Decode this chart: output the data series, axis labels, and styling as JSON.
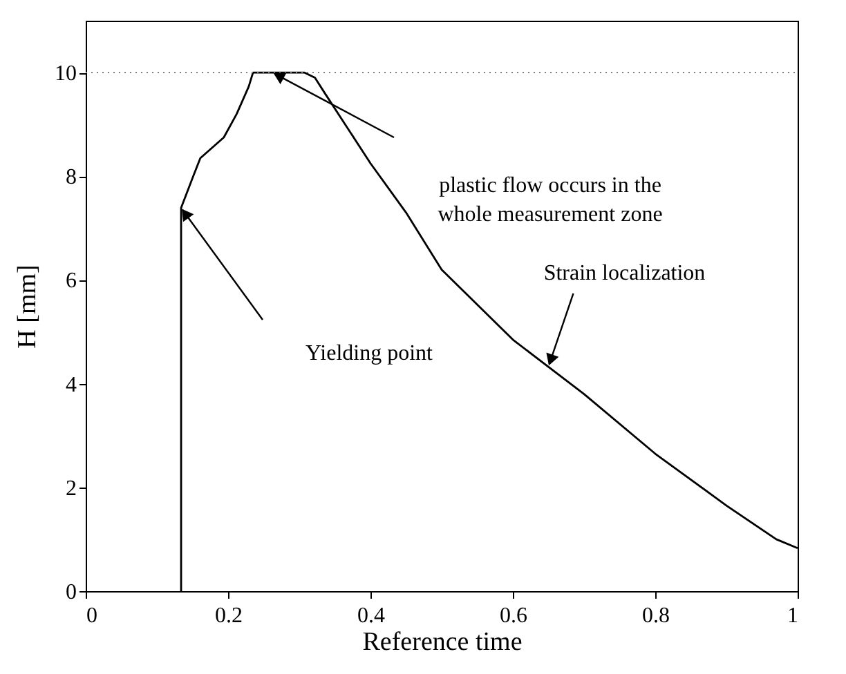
{
  "chart_data": {
    "type": "line",
    "xlabel": "Reference time",
    "ylabel": "H [mm]",
    "x": [
      0.134,
      0.134,
      0.151,
      0.161,
      0.194,
      0.212,
      0.229,
      0.235,
      0.307,
      0.322,
      0.336,
      0.4,
      0.45,
      0.5,
      0.6,
      0.7,
      0.8,
      0.9,
      0.97,
      1.0
    ],
    "series": [
      {
        "color": "#000000",
        "values": [
          0,
          7.39,
          8.0,
          8.35,
          8.75,
          9.2,
          9.73,
          10.0,
          10.0,
          9.9,
          9.6,
          8.25,
          7.3,
          6.2,
          4.85,
          3.8,
          2.65,
          1.65,
          1.0,
          0.83
        ]
      }
    ],
    "xlim": [
      0,
      1
    ],
    "ylim": [
      0,
      11
    ],
    "xticks": [
      {
        "value": 0,
        "label": "0"
      },
      0.2,
      0.4,
      0.6,
      0.8,
      {
        "value": 1,
        "label": "1"
      }
    ],
    "yticks": [
      0,
      2,
      4,
      6,
      8,
      10
    ],
    "grid": false,
    "marker": "none",
    "line_style": "solid",
    "ref_lines": [
      {
        "axis": "y",
        "value": 10,
        "color": "#808080",
        "line_style": "dotted"
      }
    ],
    "annotations": [
      "plastic flow occurs in the\nwhole measurement zone",
      "Yielding point",
      {
        "text": "Strain localization",
        "x": 0.65,
        "y": 4.33
      }
    ]
  }
}
